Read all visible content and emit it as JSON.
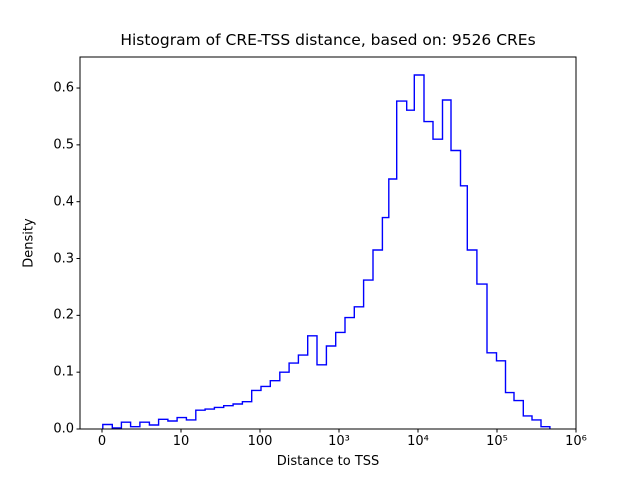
{
  "figure": {
    "title": "Histogram of CRE-TSS distance, based on: 9526 CREs"
  },
  "chart_data": {
    "type": "bar",
    "subtype": "step-histogram",
    "title": "Histogram of CRE-TSS distance, based on: 9526 CREs",
    "xlabel": "Distance to TSS",
    "ylabel": "Density",
    "sample_count_shown_in_title": 9526,
    "x_scale": "symlog: linear from 0 to 10, log10 above 10; u-units = axis decades (u=0 at x=0, u=1 at x=10, u=6 at x=1e6)",
    "grid": false,
    "legend": "none",
    "line_color": "#0000ff",
    "background_color": "#ffffff",
    "ylim": [
      0.0,
      0.6546
    ],
    "xlim_u": [
      -0.278,
      6.0
    ],
    "y_ticks": [
      "0.0",
      "0.1",
      "0.2",
      "0.3",
      "0.4",
      "0.5",
      "0.6"
    ],
    "y_tick_values": [
      0.0,
      0.1,
      0.2,
      0.3,
      0.4,
      0.5,
      0.6
    ],
    "x_ticks": [
      {
        "label": "0",
        "u": 0,
        "x": 0
      },
      {
        "label": "10",
        "u": 1,
        "x": 10
      },
      {
        "label": "100",
        "u": 2,
        "x": 100
      },
      {
        "label": "10³",
        "u": 3,
        "x": 1000
      },
      {
        "label": "10⁴",
        "u": 4,
        "x": 10000
      },
      {
        "label": "10⁵",
        "u": 5,
        "x": 100000
      },
      {
        "label": "10⁶",
        "u": 6,
        "x": 1000000
      }
    ],
    "bins_u_edges": [
      0.01,
      0.13,
      0.245,
      0.362,
      0.48,
      0.6,
      0.717,
      0.834,
      0.95,
      1.068,
      1.187,
      1.305,
      1.423,
      1.541,
      1.659,
      1.777,
      1.895,
      2.013,
      2.131,
      2.25,
      2.368,
      2.486,
      2.604,
      2.722,
      2.84,
      2.958,
      3.076,
      3.194,
      3.312,
      3.43,
      3.55,
      3.63,
      3.73,
      3.857,
      3.953,
      4.076,
      4.19,
      4.31,
      4.418,
      4.538,
      4.624,
      4.746,
      4.873,
      4.994,
      5.108,
      5.215,
      5.333,
      5.443,
      5.557,
      5.67
    ],
    "bins_density": [
      0.008,
      0.002,
      0.012,
      0.004,
      0.012,
      0.007,
      0.017,
      0.014,
      0.02,
      0.016,
      0.033,
      0.035,
      0.038,
      0.041,
      0.044,
      0.048,
      0.068,
      0.075,
      0.085,
      0.1,
      0.116,
      0.13,
      0.164,
      0.113,
      0.146,
      0.17,
      0.196,
      0.215,
      0.262,
      0.315,
      0.372,
      0.44,
      0.577,
      0.561,
      0.623,
      0.541,
      0.51,
      0.579,
      0.49,
      0.428,
      0.315,
      0.255,
      0.134,
      0.12,
      0.064,
      0.05,
      0.023,
      0.016,
      0.004
    ],
    "peak": {
      "density": 0.623,
      "x_range_approx": "10400 - 18300"
    },
    "annotations": []
  }
}
